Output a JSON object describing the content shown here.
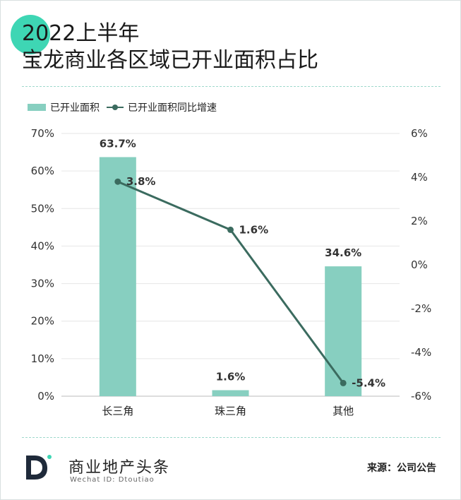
{
  "title": {
    "line1": "2022上半年",
    "line2": "宝龙商业各区域已开业面积占比"
  },
  "legend": {
    "bar_label": "已开业面积",
    "line_label": "已开业面积同比增速"
  },
  "colors": {
    "bar": "#87cfc0",
    "line": "#3b6b5f",
    "badge": "#3ed6b4",
    "accent": "#3ed6b4"
  },
  "chart_data": {
    "type": "bar",
    "categories": [
      "长三角",
      "珠三角",
      "其他"
    ],
    "series": [
      {
        "name": "已开业面积",
        "type": "bar",
        "axis": "left",
        "values": [
          63.7,
          1.6,
          34.6
        ],
        "labels": [
          "63.7%",
          "1.6%",
          "34.6%"
        ]
      },
      {
        "name": "已开业面积同比增速",
        "type": "line",
        "axis": "right",
        "values": [
          3.8,
          1.6,
          -5.4
        ],
        "labels": [
          "3.8%",
          "1.6%",
          "-5.4%"
        ]
      }
    ],
    "y_left": {
      "ylim": [
        0,
        70
      ],
      "ticks": [
        "0%",
        "10%",
        "20%",
        "30%",
        "40%",
        "50%",
        "60%",
        "70%"
      ]
    },
    "y_right": {
      "ylim": [
        -6,
        6
      ],
      "ticks": [
        "-6%",
        "-4%",
        "-2%",
        "0%",
        "2%",
        "4%",
        "6%"
      ]
    },
    "grid": true,
    "legend_position": "top-left"
  },
  "footer": {
    "brand": "商业地产头条",
    "brand_sub": "Wechat ID: Dtoutiao",
    "source": "来源：公司公告"
  }
}
